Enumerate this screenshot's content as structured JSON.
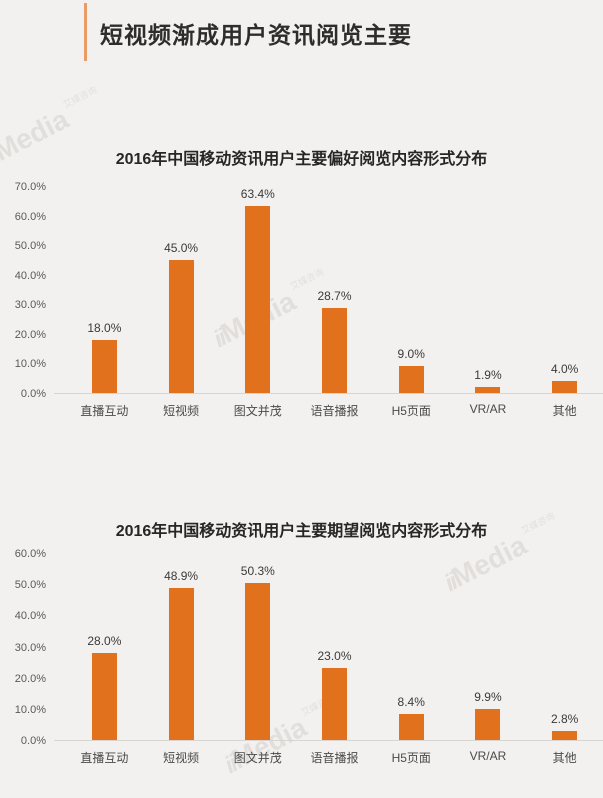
{
  "page": {
    "background": "#f3f1ef",
    "accent_color": "#e2711d",
    "accent_bar_color": "#e99c66"
  },
  "header": {
    "title": "短视频渐成用户资讯阅览主要"
  },
  "watermark": {
    "logo": "ii",
    "brand": "Media",
    "caption": "艾媒咨询"
  },
  "chart_data": [
    {
      "type": "bar",
      "title": "2016年中国移动资讯用户主要偏好阅览内容形式分布",
      "categories": [
        "直播互动",
        "短视频",
        "图文并茂",
        "语音播报",
        "H5页面",
        "VR/AR",
        "其他"
      ],
      "values": [
        18.0,
        45.0,
        63.4,
        28.7,
        9.0,
        1.9,
        4.0
      ],
      "labels": [
        "18.0%",
        "45.0%",
        "63.4%",
        "28.7%",
        "9.0%",
        "1.9%",
        "4.0%"
      ],
      "xlabel": "",
      "ylabel": "",
      "ylim": [
        0,
        70
      ],
      "ytick_step": 10,
      "ytick_labels": [
        "0.0%",
        "10.0%",
        "20.0%",
        "30.0%",
        "40.0%",
        "50.0%",
        "60.0%",
        "70.0%"
      ],
      "bar_color": "#e2711d",
      "grid": false,
      "legend": "none"
    },
    {
      "type": "bar",
      "title": "2016年中国移动资讯用户主要期望阅览内容形式分布",
      "categories": [
        "直播互动",
        "短视频",
        "图文并茂",
        "语音播报",
        "H5页面",
        "VR/AR",
        "其他"
      ],
      "values": [
        28.0,
        48.9,
        50.3,
        23.0,
        8.4,
        9.9,
        2.8
      ],
      "labels": [
        "28.0%",
        "48.9%",
        "50.3%",
        "23.0%",
        "8.4%",
        "9.9%",
        "2.8%"
      ],
      "xlabel": "",
      "ylabel": "",
      "ylim": [
        0,
        60
      ],
      "ytick_step": 10,
      "ytick_labels": [
        "0.0%",
        "10.0%",
        "20.0%",
        "30.0%",
        "40.0%",
        "50.0%",
        "60.0%"
      ],
      "bar_color": "#e2711d",
      "grid": false,
      "legend": "none"
    }
  ]
}
